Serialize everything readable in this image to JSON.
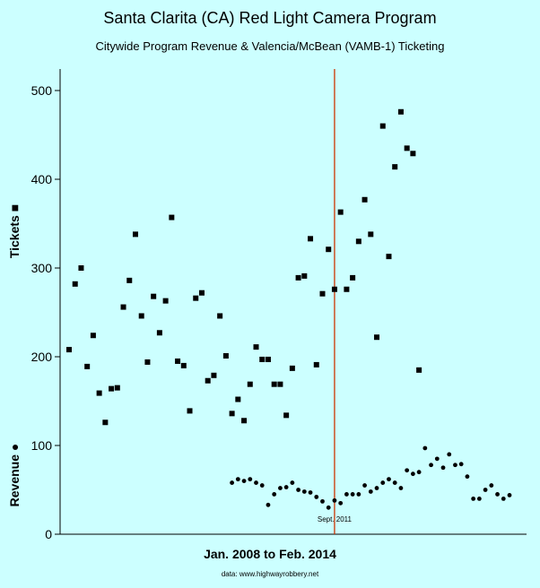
{
  "header": {
    "title": "Santa Clarita (CA) Red Light Camera Program",
    "subtitle": "Citywide Program Revenue & Valencia/McBean (VAMB-1) Ticketing"
  },
  "footer": {
    "source": "data:  www.highwayrobbery.net"
  },
  "colors": {
    "background": "#ccffff",
    "marker": "#000000",
    "event_line": "#cc3300"
  },
  "chart_data": {
    "type": "scatter",
    "title": "Santa Clarita (CA) Red Light Camera Program",
    "subtitle": "Citywide Program Revenue & Valencia/McBean (VAMB-1) Ticketing",
    "xlabel": "Jan. 2008 to Feb. 2014",
    "ylabel_tickets": "Tickets ■",
    "ylabel_revenue": "Revenue ●",
    "ylim": [
      0,
      520
    ],
    "yticks": [
      "0",
      "100",
      "200",
      "300",
      "400",
      "500"
    ],
    "x_range_months": [
      1,
      74
    ],
    "annotation": {
      "x": 45,
      "label": "Sept. 2011"
    },
    "series": [
      {
        "name": "Tickets",
        "marker": "square",
        "x": [
          1,
          2,
          3,
          4,
          5,
          6,
          7,
          8,
          9,
          10,
          11,
          12,
          13,
          14,
          15,
          16,
          17,
          18,
          19,
          20,
          21,
          22,
          23,
          24,
          25,
          26,
          27,
          28,
          29,
          30,
          31,
          32,
          33,
          34,
          35,
          36,
          37,
          38,
          39,
          40,
          41,
          42,
          43,
          44,
          45,
          46,
          47,
          48,
          49,
          50,
          51,
          52,
          53,
          54,
          55,
          56,
          57,
          58,
          59,
          60,
          61,
          62,
          63
        ],
        "values": [
          208,
          282,
          300,
          189,
          224,
          159,
          126,
          164,
          165,
          256,
          286,
          338,
          246,
          194,
          268,
          227,
          263,
          357,
          195,
          190,
          139,
          266,
          272,
          173,
          179,
          246,
          201,
          136,
          152,
          128,
          169,
          211,
          197,
          197,
          169,
          169,
          134,
          187,
          289,
          291,
          333,
          191,
          271,
          321,
          276,
          363,
          276,
          289,
          330,
          377,
          338,
          222,
          460,
          313,
          414,
          476,
          435,
          429,
          185,
          null,
          null,
          null,
          null
        ]
      },
      {
        "name": "Revenue",
        "marker": "circle",
        "x": [
          28,
          29,
          30,
          31,
          32,
          33,
          34,
          35,
          36,
          37,
          38,
          39,
          40,
          41,
          42,
          43,
          44,
          45,
          46,
          47,
          48,
          49,
          50,
          51,
          52,
          53,
          54,
          55,
          56,
          57,
          58,
          59,
          60,
          61,
          62,
          63,
          64,
          65,
          66,
          67,
          68,
          69,
          70,
          71,
          72,
          73,
          74
        ],
        "values": [
          58,
          62,
          60,
          62,
          58,
          55,
          33,
          45,
          52,
          53,
          58,
          50,
          48,
          47,
          42,
          37,
          30,
          38,
          35,
          45,
          45,
          45,
          55,
          48,
          52,
          58,
          62,
          58,
          52,
          72,
          68,
          70,
          97,
          78,
          85,
          75,
          90,
          78,
          79,
          65,
          40,
          40,
          50,
          55,
          45,
          40,
          44
        ]
      }
    ]
  }
}
